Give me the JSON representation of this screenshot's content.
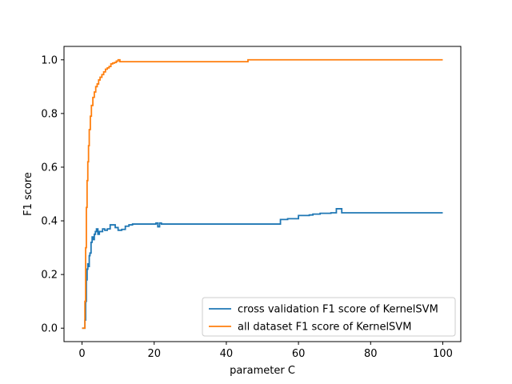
{
  "chart_data": {
    "type": "line",
    "xlabel": "parameter C",
    "ylabel": "F1 score",
    "xlim": [
      -5,
      105
    ],
    "ylim": [
      -0.05,
      1.05
    ],
    "x_ticks": [
      0,
      20,
      40,
      60,
      80,
      100
    ],
    "y_ticks": [
      0.0,
      0.2,
      0.4,
      0.6,
      0.8,
      1.0
    ],
    "x_tick_labels": [
      "0",
      "20",
      "40",
      "60",
      "80",
      "100"
    ],
    "y_tick_labels": [
      "0.0",
      "0.2",
      "0.4",
      "0.6",
      "0.8",
      "1.0"
    ],
    "grid": false,
    "legend_position": "lower-right",
    "series": [
      {
        "name": "cross validation F1 score of KernelSVM",
        "color": "#1f77b4",
        "x": [
          0,
          0.8,
          1.0,
          1.2,
          1.4,
          1.6,
          1.8,
          2.0,
          2.2,
          2.5,
          2.8,
          3.1,
          3.4,
          3.7,
          4.0,
          4.4,
          4.8,
          5.2,
          5.7,
          6.3,
          7.0,
          7.8,
          8.5,
          9.2,
          10.0,
          11.0,
          12.0,
          13.0,
          14.0,
          16.0,
          18.0,
          20.5,
          21.0,
          21.5,
          22.0,
          23.0,
          30.0,
          40.0,
          50.0,
          55.0,
          57.0,
          59.0,
          60.0,
          62.0,
          63.0,
          64.0,
          66.0,
          68.0,
          69.0,
          70.5,
          71.0,
          72.0,
          80.0,
          90.0,
          100.0
        ],
        "y": [
          0.0,
          0.03,
          0.1,
          0.18,
          0.22,
          0.24,
          0.23,
          0.27,
          0.28,
          0.32,
          0.34,
          0.33,
          0.35,
          0.36,
          0.37,
          0.35,
          0.36,
          0.36,
          0.37,
          0.365,
          0.37,
          0.385,
          0.385,
          0.375,
          0.365,
          0.368,
          0.38,
          0.385,
          0.388,
          0.388,
          0.388,
          0.392,
          0.378,
          0.392,
          0.388,
          0.388,
          0.388,
          0.388,
          0.388,
          0.405,
          0.408,
          0.408,
          0.42,
          0.42,
          0.422,
          0.425,
          0.428,
          0.428,
          0.43,
          0.445,
          0.445,
          0.43,
          0.43,
          0.43,
          0.43
        ]
      },
      {
        "name": "all dataset F1 score of KernelSVM",
        "color": "#ff7f0e",
        "x": [
          0,
          0.6,
          0.8,
          1.0,
          1.2,
          1.4,
          1.6,
          1.8,
          2.0,
          2.3,
          2.6,
          3.0,
          3.4,
          3.8,
          4.2,
          4.6,
          5.0,
          5.5,
          6.0,
          6.5,
          7.0,
          7.5,
          8.0,
          8.5,
          9.0,
          9.5,
          10.0,
          10.5,
          12.0,
          20.0,
          30.0,
          40.0,
          46.0,
          47.0,
          60.0,
          80.0,
          100.0
        ],
        "y": [
          0.0,
          0.0,
          0.1,
          0.3,
          0.45,
          0.55,
          0.62,
          0.68,
          0.74,
          0.79,
          0.83,
          0.86,
          0.88,
          0.9,
          0.91,
          0.925,
          0.935,
          0.945,
          0.955,
          0.965,
          0.97,
          0.975,
          0.985,
          0.988,
          0.99,
          0.995,
          1.0,
          0.993,
          0.993,
          0.993,
          0.993,
          0.993,
          1.0,
          1.0,
          1.0,
          1.0,
          1.0
        ]
      }
    ]
  }
}
